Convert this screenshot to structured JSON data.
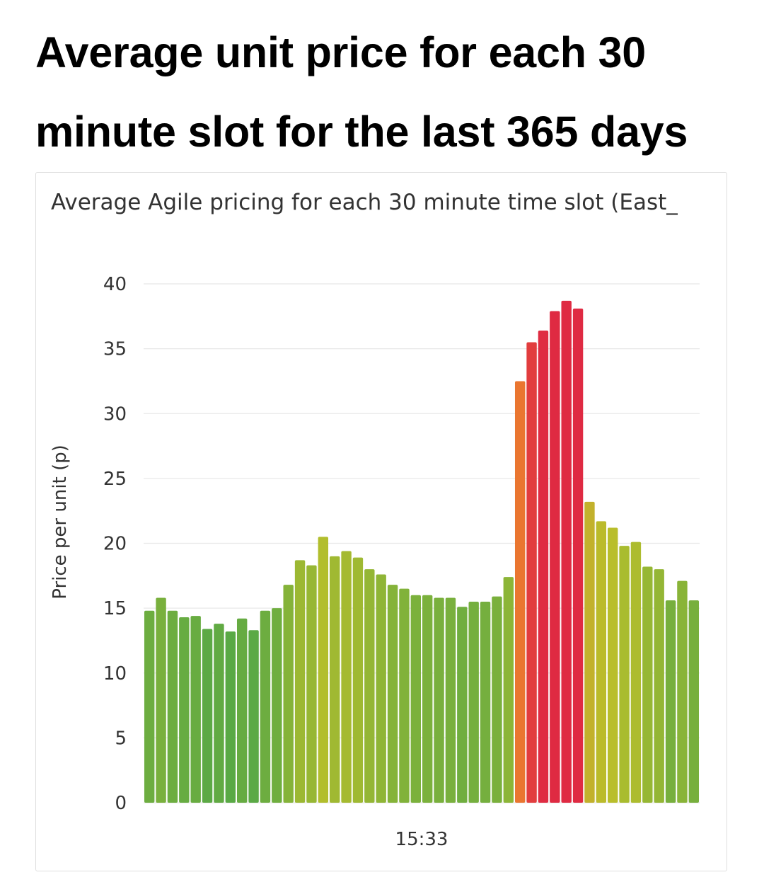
{
  "page": {
    "heading": "Average unit price for each 30 minute slot for the last 365 days"
  },
  "chart_data": {
    "type": "bar",
    "title": "Average Agile pricing for each 30 minute time slot (East_",
    "ylabel": "Price per unit (p)",
    "xlabel": "",
    "ylim": [
      0,
      40
    ],
    "yticks": [
      0,
      5,
      10,
      15,
      20,
      25,
      30,
      35,
      40
    ],
    "xtick_label": "15:33",
    "grid": true,
    "legend": "none",
    "colors": {
      "low": "#57a846",
      "mid": "#b8bf2b",
      "orange": "#ea7630",
      "high": "#df2a42"
    },
    "values": [
      14.8,
      15.8,
      14.8,
      14.3,
      14.4,
      13.4,
      13.8,
      13.2,
      14.2,
      13.3,
      14.8,
      15.0,
      16.8,
      18.7,
      18.3,
      20.5,
      19.0,
      19.4,
      18.9,
      18.0,
      17.6,
      16.8,
      16.5,
      16.0,
      16.0,
      15.8,
      15.8,
      15.1,
      15.5,
      15.5,
      15.9,
      17.4,
      32.5,
      35.5,
      36.4,
      37.9,
      38.7,
      38.1,
      23.2,
      21.7,
      21.2,
      19.8,
      20.1,
      18.2,
      18.0,
      15.6,
      17.1,
      15.6
    ]
  }
}
